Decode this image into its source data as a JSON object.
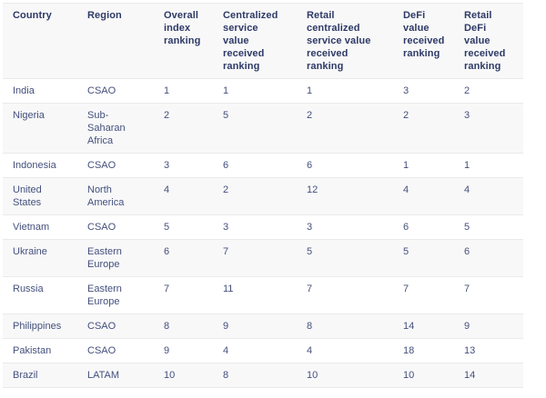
{
  "chart_data": {
    "type": "table",
    "title": "",
    "columns": [
      {
        "key": "country",
        "label": "Country",
        "display": "Country"
      },
      {
        "key": "region",
        "label": "Region",
        "display": "Region"
      },
      {
        "key": "overall_index_ranking",
        "label": "Overall index ranking",
        "display": "Overall\nindex\nranking"
      },
      {
        "key": "centralized_service_value_received_ranking",
        "label": "Centralized service value received ranking",
        "display": "Centralized\nservice\nvalue\nreceived\nranking"
      },
      {
        "key": "retail_centralized_service_value_received_ranking",
        "label": "Retail centralized service value received ranking",
        "display": "Retail\ncentralized\nservice value\nreceived\nranking"
      },
      {
        "key": "defi_value_received_ranking",
        "label": "DeFi value received ranking",
        "display": "DeFi\nvalue\nreceived\nranking"
      },
      {
        "key": "retail_defi_value_received_ranking",
        "label": "Retail DeFi value received ranking",
        "display": "Retail\nDeFi\nvalue\nreceived\nranking"
      }
    ],
    "rows": [
      {
        "cells": [
          "India",
          "CSAO",
          "1",
          "1",
          "1",
          "3",
          "2"
        ]
      },
      {
        "cells": [
          "Nigeria",
          "Sub-Saharan Africa",
          "2",
          "5",
          "2",
          "2",
          "3"
        ]
      },
      {
        "cells": [
          "Indonesia",
          "CSAO",
          "3",
          "6",
          "6",
          "1",
          "1"
        ]
      },
      {
        "cells": [
          "United States",
          "North America",
          "4",
          "2",
          "12",
          "4",
          "4"
        ]
      },
      {
        "cells": [
          "Vietnam",
          "CSAO",
          "5",
          "3",
          "3",
          "6",
          "5"
        ]
      },
      {
        "cells": [
          "Ukraine",
          "Eastern Europe",
          "6",
          "7",
          "5",
          "5",
          "6"
        ]
      },
      {
        "cells": [
          "Russia",
          "Eastern Europe",
          "7",
          "11",
          "7",
          "7",
          "7"
        ]
      },
      {
        "cells": [
          "Philippines",
          "CSAO",
          "8",
          "9",
          "8",
          "14",
          "9"
        ]
      },
      {
        "cells": [
          "Pakistan",
          "CSAO",
          "9",
          "4",
          "4",
          "18",
          "13"
        ]
      },
      {
        "cells": [
          "Brazil",
          "LATAM",
          "10",
          "8",
          "10",
          "10",
          "14"
        ]
      }
    ]
  },
  "colors": {
    "header_background": "#f8f8f9",
    "stripe_background": "#f8f8f9",
    "row_background": "#ffffff",
    "header_text": "#2e3a66",
    "body_text": "#44507c",
    "border": "#eaeaec"
  }
}
